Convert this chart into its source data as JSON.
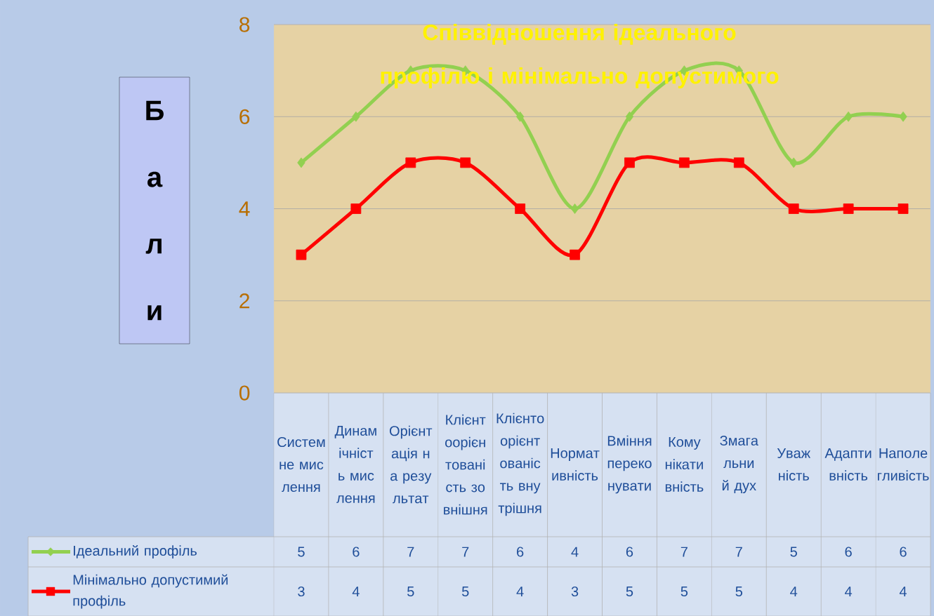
{
  "chart_data": {
    "type": "line",
    "title": "Співвідношення ідеального профілю і мінімально допустимого",
    "ylabel": "Бали",
    "categories": [
      "Системне мислення",
      "Динамічність мислення",
      "Орієнтація на результат",
      "Клієнтоорієнтованість зовнішня",
      "Клієнтоорієнтованість внутрішня",
      "Нормативність",
      "Вміння переконувати",
      "Комунікативність",
      "Змагальний дух",
      "Уважність",
      "Адаптивність",
      "Наполегливість"
    ],
    "series": [
      {
        "name": "Ідеальний профіль",
        "color": "#92d050",
        "marker": "diamond",
        "values": [
          5,
          6,
          7,
          7,
          6,
          4,
          6,
          7,
          7,
          5,
          6,
          6
        ]
      },
      {
        "name": "Мінімально допустимий профіль",
        "color": "#ff0000",
        "marker": "square",
        "values": [
          3,
          4,
          5,
          5,
          4,
          3,
          5,
          5,
          5,
          4,
          4,
          4
        ]
      }
    ],
    "ylim": [
      0,
      8
    ],
    "yticks": [
      0,
      2,
      4,
      6,
      8
    ],
    "grid": true,
    "legend": "bottom",
    "data_labels": true
  }
}
